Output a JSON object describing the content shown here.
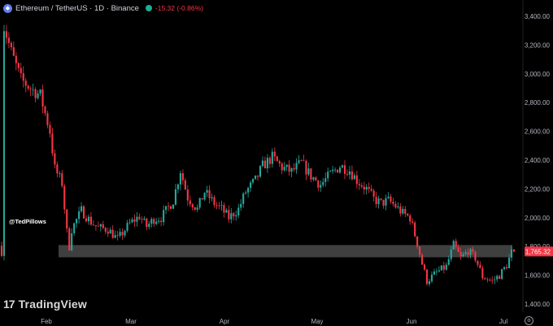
{
  "header": {
    "coin_icon": "ethereum-icon",
    "title": "Ethereum / TetherUS · 1D · Binance",
    "status_dot_color": "#22ab94",
    "change": "-15.32 (-0.86%)"
  },
  "watermark": {
    "icon": "tradingview-logo-icon",
    "logo_glyph": "17",
    "text": "TradingView"
  },
  "author": "@TedPillows",
  "colors": {
    "up": "#26a69a",
    "down": "#f23645",
    "zone": "#4a4a4a",
    "price_label": "#f23645",
    "background": "#000000"
  },
  "chart_data": {
    "type": "candlestick",
    "title": "",
    "xlabel": "",
    "ylabel": "",
    "ylim": [
      1380,
      3480
    ],
    "y_ticks": [
      1400,
      1600,
      1800,
      2000,
      2200,
      2400,
      2600,
      2800,
      3000,
      3200,
      3400
    ],
    "y_tick_labels": [
      "1,400.00",
      "1,600.00",
      "1,800.00",
      "2,000.00",
      "2,200.00",
      "2,400.00",
      "2,600.00",
      "2,800.00",
      "3,000.00",
      "3,200.00",
      "3,400.00"
    ],
    "x_ticks": [
      "Feb",
      "Mar",
      "Apr",
      "May",
      "Jun",
      "Jul"
    ],
    "last_price_label": "1,765.32",
    "last_price": 1765.32,
    "support_zone": {
      "low": 1725,
      "high": 1810
    },
    "grid": false,
    "close_path": [
      [
        1,
        3330
      ],
      [
        4,
        3150
      ],
      [
        8,
        2960
      ],
      [
        12,
        2900
      ],
      [
        16,
        2850
      ],
      [
        20,
        2600
      ],
      [
        22,
        2340
      ],
      [
        25,
        2240
      ],
      [
        27,
        1900
      ],
      [
        28,
        1800
      ],
      [
        29,
        1920
      ],
      [
        33,
        2050
      ],
      [
        37,
        1970
      ],
      [
        40,
        1930
      ],
      [
        44,
        1920
      ],
      [
        48,
        1850
      ],
      [
        53,
        1960
      ],
      [
        57,
        2010
      ],
      [
        60,
        1940
      ],
      [
        63,
        1990
      ],
      [
        66,
        2000
      ],
      [
        71,
        2120
      ],
      [
        74,
        2330
      ],
      [
        77,
        2140
      ],
      [
        81,
        2060
      ],
      [
        84,
        2180
      ],
      [
        88,
        2100
      ],
      [
        91,
        2060
      ],
      [
        94,
        2000
      ],
      [
        98,
        2060
      ],
      [
        101,
        2180
      ],
      [
        105,
        2260
      ],
      [
        108,
        2360
      ],
      [
        112,
        2420
      ],
      [
        116,
        2350
      ],
      [
        120,
        2320
      ],
      [
        124,
        2380
      ],
      [
        128,
        2290
      ],
      [
        132,
        2230
      ],
      [
        136,
        2300
      ],
      [
        140,
        2360
      ],
      [
        144,
        2330
      ],
      [
        147,
        2260
      ],
      [
        151,
        2200
      ],
      [
        154,
        2130
      ],
      [
        157,
        2100
      ],
      [
        160,
        2120
      ],
      [
        163,
        2080
      ],
      [
        166,
        2030
      ],
      [
        169,
        2000
      ],
      [
        172,
        1820
      ],
      [
        174,
        1680
      ],
      [
        176,
        1560
      ],
      [
        180,
        1620
      ],
      [
        184,
        1660
      ],
      [
        187,
        1810
      ],
      [
        190,
        1720
      ],
      [
        193,
        1770
      ],
      [
        196,
        1720
      ],
      [
        199,
        1590
      ],
      [
        203,
        1560
      ],
      [
        206,
        1600
      ],
      [
        209,
        1670
      ],
      [
        211,
        1760
      ],
      [
        212,
        1765.32
      ]
    ],
    "date_range": [
      "2022-01-03",
      "2022-07-05"
    ]
  }
}
